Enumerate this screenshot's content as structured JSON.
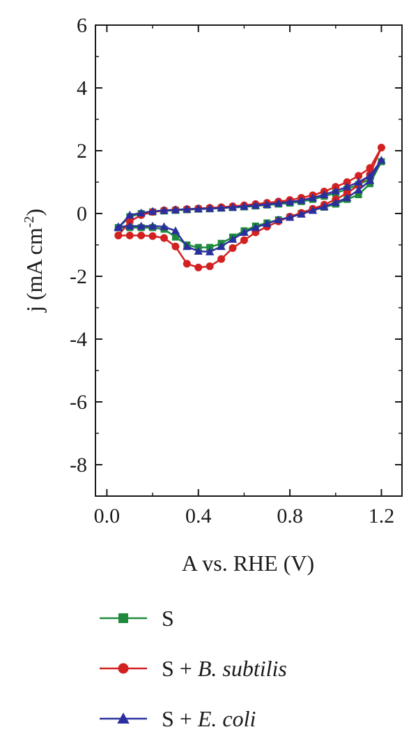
{
  "chart_data": {
    "type": "line",
    "xlabel": "A vs. RHE (V)",
    "ylabel_main": "j (mA cm",
    "ylabel_sup": "-2",
    "ylabel_close": ")",
    "xlim": [
      -0.05,
      1.29
    ],
    "ylim": [
      -9,
      6
    ],
    "x_ticks": [
      0.0,
      0.4,
      0.8,
      1.2
    ],
    "x_tick_labels": [
      "0.0",
      "0.4",
      "0.8",
      "1.2"
    ],
    "y_ticks": [
      6,
      4,
      2,
      0,
      -2,
      -4,
      -6,
      -8
    ],
    "y_tick_labels": [
      "6",
      "4",
      "2",
      "0",
      "-2",
      "-4",
      "-6",
      "-8"
    ],
    "grid": false,
    "legend_position": "bottom",
    "series": [
      {
        "name": "S",
        "name_parts": [
          {
            "text": "S",
            "italic": false
          }
        ],
        "color": "#1e8a3c",
        "marker": "square",
        "x": [
          0.05,
          0.1,
          0.15,
          0.2,
          0.25,
          0.3,
          0.35,
          0.4,
          0.45,
          0.5,
          0.55,
          0.6,
          0.65,
          0.7,
          0.75,
          0.8,
          0.85,
          0.9,
          0.95,
          1.0,
          1.05,
          1.1,
          1.15,
          1.2,
          1.15,
          1.1,
          1.05,
          1.0,
          0.95,
          0.9,
          0.85,
          0.8,
          0.75,
          0.7,
          0.65,
          0.6,
          0.55,
          0.5,
          0.45,
          0.4,
          0.35,
          0.3,
          0.25,
          0.2,
          0.15,
          0.1,
          0.05
        ],
        "y": [
          -0.45,
          -0.1,
          0.0,
          0.05,
          0.08,
          0.1,
          0.12,
          0.14,
          0.15,
          0.17,
          0.19,
          0.21,
          0.24,
          0.27,
          0.3,
          0.33,
          0.38,
          0.45,
          0.55,
          0.65,
          0.78,
          0.92,
          1.1,
          1.65,
          0.95,
          0.6,
          0.45,
          0.3,
          0.2,
          0.1,
          0.0,
          -0.12,
          -0.2,
          -0.3,
          -0.4,
          -0.55,
          -0.75,
          -0.95,
          -1.08,
          -1.08,
          -1.0,
          -0.75,
          -0.5,
          -0.45,
          -0.45,
          -0.45,
          -0.45
        ]
      },
      {
        "name": "S + B. subtilis",
        "name_parts": [
          {
            "text": "S + ",
            "italic": false
          },
          {
            "text": "B. subtilis",
            "italic": true
          }
        ],
        "color": "#d32020",
        "marker": "circle",
        "x": [
          0.05,
          0.1,
          0.15,
          0.2,
          0.25,
          0.3,
          0.35,
          0.4,
          0.45,
          0.5,
          0.55,
          0.6,
          0.65,
          0.7,
          0.75,
          0.8,
          0.85,
          0.9,
          0.95,
          1.0,
          1.05,
          1.1,
          1.15,
          1.2,
          1.15,
          1.1,
          1.05,
          1.0,
          0.95,
          0.9,
          0.85,
          0.8,
          0.75,
          0.7,
          0.65,
          0.6,
          0.55,
          0.5,
          0.45,
          0.4,
          0.35,
          0.3,
          0.25,
          0.2,
          0.15,
          0.1,
          0.05
        ],
        "y": [
          -0.7,
          -0.25,
          -0.05,
          0.05,
          0.1,
          0.12,
          0.14,
          0.16,
          0.18,
          0.2,
          0.23,
          0.26,
          0.3,
          0.34,
          0.38,
          0.43,
          0.5,
          0.58,
          0.7,
          0.85,
          1.0,
          1.2,
          1.45,
          2.1,
          1.25,
          0.9,
          0.65,
          0.45,
          0.28,
          0.15,
          0.02,
          -0.1,
          -0.25,
          -0.42,
          -0.6,
          -0.85,
          -1.1,
          -1.45,
          -1.68,
          -1.72,
          -1.6,
          -1.05,
          -0.78,
          -0.72,
          -0.7,
          -0.7,
          -0.7
        ]
      },
      {
        "name": "S + E. coli",
        "name_parts": [
          {
            "text": "S + ",
            "italic": false
          },
          {
            "text": "E. coli",
            "italic": true
          }
        ],
        "color": "#2b2f9e",
        "marker": "triangle",
        "x": [
          0.05,
          0.1,
          0.15,
          0.2,
          0.25,
          0.3,
          0.35,
          0.4,
          0.45,
          0.5,
          0.55,
          0.6,
          0.65,
          0.7,
          0.75,
          0.8,
          0.85,
          0.9,
          0.95,
          1.0,
          1.05,
          1.1,
          1.15,
          1.2,
          1.15,
          1.1,
          1.05,
          1.0,
          0.95,
          0.9,
          0.85,
          0.8,
          0.75,
          0.7,
          0.65,
          0.6,
          0.55,
          0.5,
          0.45,
          0.4,
          0.35,
          0.3,
          0.25,
          0.2,
          0.15,
          0.1,
          0.05
        ],
        "y": [
          -0.45,
          -0.05,
          0.02,
          0.07,
          0.1,
          0.12,
          0.14,
          0.15,
          0.16,
          0.18,
          0.2,
          0.23,
          0.26,
          0.29,
          0.33,
          0.37,
          0.42,
          0.5,
          0.6,
          0.72,
          0.85,
          1.0,
          1.2,
          1.7,
          1.05,
          0.75,
          0.5,
          0.35,
          0.22,
          0.1,
          -0.02,
          -0.12,
          -0.2,
          -0.32,
          -0.45,
          -0.6,
          -0.82,
          -1.05,
          -1.22,
          -1.2,
          -1.05,
          -0.55,
          -0.42,
          -0.4,
          -0.4,
          -0.4,
          -0.42
        ]
      }
    ]
  }
}
